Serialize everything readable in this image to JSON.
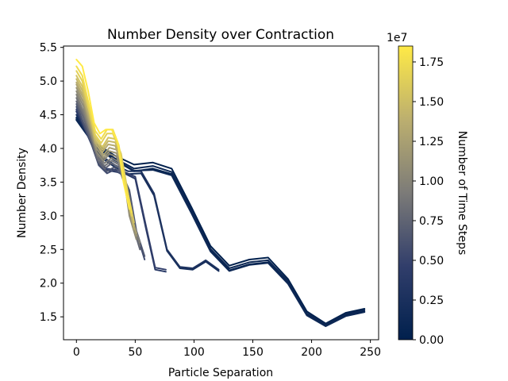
{
  "chart_data": {
    "type": "line",
    "title": "Number Density over Contraction",
    "xlabel": "Particle Separation",
    "ylabel": "Number Density",
    "xlim": [
      -11,
      257
    ],
    "ylim": [
      1.16,
      5.52
    ],
    "x_ticks": [
      0,
      50,
      100,
      150,
      200,
      250
    ],
    "x_tick_labels": [
      "0",
      "50",
      "100",
      "150",
      "200",
      "250"
    ],
    "y_ticks": [
      1.5,
      2.0,
      2.5,
      3.0,
      3.5,
      4.0,
      4.5,
      5.0,
      5.5
    ],
    "y_tick_labels": [
      "1.5",
      "2.0",
      "2.5",
      "3.0",
      "3.5",
      "4.0",
      "4.5",
      "5.0",
      "5.5"
    ],
    "grid": false,
    "colormap": "cividis",
    "colorbar": {
      "label": "Number of Time Steps",
      "multiplier_label": "1e7",
      "range": [
        0,
        18500000.0
      ],
      "ticks": [
        0.0,
        0.25,
        0.5,
        0.75,
        1.0,
        1.25,
        1.5,
        1.75
      ],
      "tick_labels": [
        "0.00",
        "0.25",
        "0.50",
        "0.75",
        "1.00",
        "1.25",
        "1.50",
        "1.75"
      ]
    },
    "series": [
      {
        "t": 0.0,
        "x": [
          0,
          16,
          32,
          49,
          65,
          81,
          98,
          114,
          130,
          147,
          163,
          180,
          196,
          212,
          229,
          245
        ],
        "y": [
          4.46,
          4.08,
          3.9,
          3.76,
          3.79,
          3.7,
          3.12,
          2.55,
          2.26,
          2.35,
          2.38,
          2.06,
          1.58,
          1.4,
          1.56,
          1.62
        ]
      },
      {
        "t": 0.05,
        "x": [
          0,
          16,
          32,
          49,
          65,
          81,
          98,
          114,
          130,
          147,
          163,
          180,
          196,
          212,
          229,
          245
        ],
        "y": [
          4.42,
          4.03,
          3.83,
          3.66,
          3.7,
          3.62,
          3.05,
          2.48,
          2.19,
          2.28,
          2.31,
          2.0,
          1.53,
          1.37,
          1.52,
          1.58
        ]
      },
      {
        "t": 0.1,
        "x": [
          0,
          16,
          32,
          49,
          65,
          81,
          98,
          114,
          130,
          147,
          163,
          180,
          196,
          212,
          229,
          245
        ],
        "y": [
          4.45,
          4.06,
          3.86,
          3.7,
          3.74,
          3.65,
          3.08,
          2.51,
          2.22,
          2.31,
          2.34,
          2.03,
          1.55,
          1.39,
          1.54,
          1.6
        ]
      },
      {
        "t": 0.12,
        "x": [
          0,
          16,
          32,
          49,
          65,
          81,
          98,
          114,
          130,
          147,
          163,
          180,
          196,
          212,
          229,
          245
        ],
        "y": [
          4.43,
          4.04,
          3.84,
          3.67,
          3.68,
          3.6,
          3.03,
          2.47,
          2.18,
          2.27,
          2.3,
          1.99,
          1.52,
          1.36,
          1.51,
          1.57
        ]
      },
      {
        "t": 0.2,
        "x": [
          0,
          11,
          22,
          33,
          44,
          55,
          66,
          77,
          88,
          99,
          110,
          121
        ],
        "y": [
          4.5,
          4.15,
          3.85,
          3.72,
          3.62,
          3.63,
          3.3,
          2.48,
          2.22,
          2.2,
          2.32,
          2.18
        ]
      },
      {
        "t": 0.27,
        "x": [
          0,
          11,
          22,
          33,
          44,
          55,
          66,
          77,
          88,
          99,
          110,
          121
        ],
        "y": [
          4.55,
          4.18,
          3.88,
          3.75,
          3.66,
          3.66,
          3.33,
          2.5,
          2.24,
          2.22,
          2.34,
          2.2
        ]
      },
      {
        "t": 0.36,
        "x": [
          0,
          8,
          17,
          25,
          34,
          42,
          50,
          59,
          67,
          76
        ],
        "y": [
          4.55,
          4.25,
          3.9,
          3.68,
          3.65,
          3.62,
          3.55,
          2.82,
          2.2,
          2.17
        ]
      },
      {
        "t": 0.45,
        "x": [
          0,
          8,
          17,
          25,
          34,
          42,
          50,
          59,
          67,
          76
        ],
        "y": [
          4.58,
          4.28,
          3.92,
          3.7,
          3.68,
          3.64,
          3.58,
          2.86,
          2.23,
          2.2
        ]
      },
      {
        "t": 0.55,
        "x": [
          0,
          6,
          13,
          19,
          26,
          32,
          38,
          45,
          51,
          58
        ],
        "y": [
          4.62,
          4.35,
          4.05,
          3.75,
          3.63,
          3.68,
          3.62,
          3.35,
          2.75,
          2.35
        ]
      },
      {
        "t": 0.65,
        "x": [
          0,
          6,
          13,
          19,
          26,
          32,
          38,
          45,
          51,
          58
        ],
        "y": [
          4.66,
          4.38,
          4.08,
          3.78,
          3.66,
          3.72,
          3.65,
          3.38,
          2.78,
          2.4
        ]
      },
      {
        "t": 0.75,
        "x": [
          0,
          6,
          12,
          18,
          24,
          30,
          36,
          42,
          48,
          54
        ],
        "y": [
          4.7,
          4.45,
          4.15,
          3.82,
          3.7,
          3.78,
          3.72,
          3.42,
          2.85,
          2.5
        ]
      },
      {
        "t": 0.85,
        "x": [
          0,
          6,
          12,
          18,
          24,
          30,
          36,
          42,
          48,
          54
        ],
        "y": [
          4.75,
          4.5,
          4.2,
          3.86,
          3.74,
          3.82,
          3.76,
          3.46,
          2.88,
          2.55
        ]
      },
      {
        "t": 0.95,
        "x": [
          0,
          6,
          12,
          18,
          24,
          30,
          36,
          42,
          48,
          54
        ],
        "y": [
          4.8,
          4.55,
          4.24,
          3.9,
          3.78,
          3.86,
          3.8,
          3.5,
          2.92,
          2.6
        ]
      },
      {
        "t": 1.05,
        "x": [
          0,
          6,
          11,
          17,
          23,
          28,
          34,
          40,
          45,
          51
        ],
        "y": [
          4.85,
          4.62,
          4.3,
          3.95,
          3.82,
          3.92,
          3.88,
          3.62,
          3.0,
          2.65
        ]
      },
      {
        "t": 1.15,
        "x": [
          0,
          6,
          11,
          17,
          23,
          28,
          34,
          40,
          45,
          51
        ],
        "y": [
          4.9,
          4.68,
          4.35,
          4.0,
          3.86,
          3.96,
          3.93,
          3.68,
          3.05,
          2.7
        ]
      },
      {
        "t": 1.25,
        "x": [
          0,
          6,
          11,
          17,
          23,
          28,
          34,
          40,
          45,
          51
        ],
        "y": [
          4.95,
          4.74,
          4.4,
          4.05,
          3.9,
          4.01,
          3.98,
          3.73,
          3.1,
          2.74
        ]
      },
      {
        "t": 1.35,
        "x": [
          0,
          5,
          11,
          16,
          22,
          27,
          33,
          38,
          44,
          49
        ],
        "y": [
          4.98,
          4.8,
          4.45,
          4.08,
          3.94,
          4.06,
          4.04,
          3.8,
          3.2,
          2.8
        ]
      },
      {
        "t": 1.45,
        "x": [
          0,
          5,
          11,
          16,
          22,
          27,
          33,
          38,
          44,
          49
        ],
        "y": [
          5.03,
          4.86,
          4.5,
          4.12,
          3.98,
          4.11,
          4.09,
          3.86,
          3.26,
          2.85
        ]
      },
      {
        "t": 1.55,
        "x": [
          0,
          5,
          11,
          16,
          22,
          27,
          33,
          38,
          44,
          49
        ],
        "y": [
          5.08,
          4.92,
          4.55,
          4.16,
          4.02,
          4.16,
          4.14,
          3.92,
          3.32,
          2.9
        ]
      },
      {
        "t": 1.65,
        "x": [
          0,
          5,
          10,
          16,
          21,
          26,
          31,
          36,
          42,
          47
        ],
        "y": [
          5.15,
          5.0,
          4.62,
          4.2,
          4.08,
          4.22,
          4.22,
          4.0,
          3.4,
          3.0
        ]
      },
      {
        "t": 1.75,
        "x": [
          0,
          5,
          10,
          16,
          21,
          26,
          31,
          36,
          42,
          47
        ],
        "y": [
          5.22,
          5.08,
          4.7,
          4.26,
          4.14,
          4.28,
          4.28,
          4.05,
          3.46,
          3.05
        ]
      },
      {
        "t": 1.85,
        "x": [
          0,
          5,
          10,
          15,
          20,
          25,
          30,
          35,
          40,
          45
        ],
        "y": [
          5.32,
          5.22,
          4.85,
          4.38,
          4.22,
          4.28,
          4.28,
          4.1,
          3.5,
          3.1
        ]
      }
    ]
  }
}
